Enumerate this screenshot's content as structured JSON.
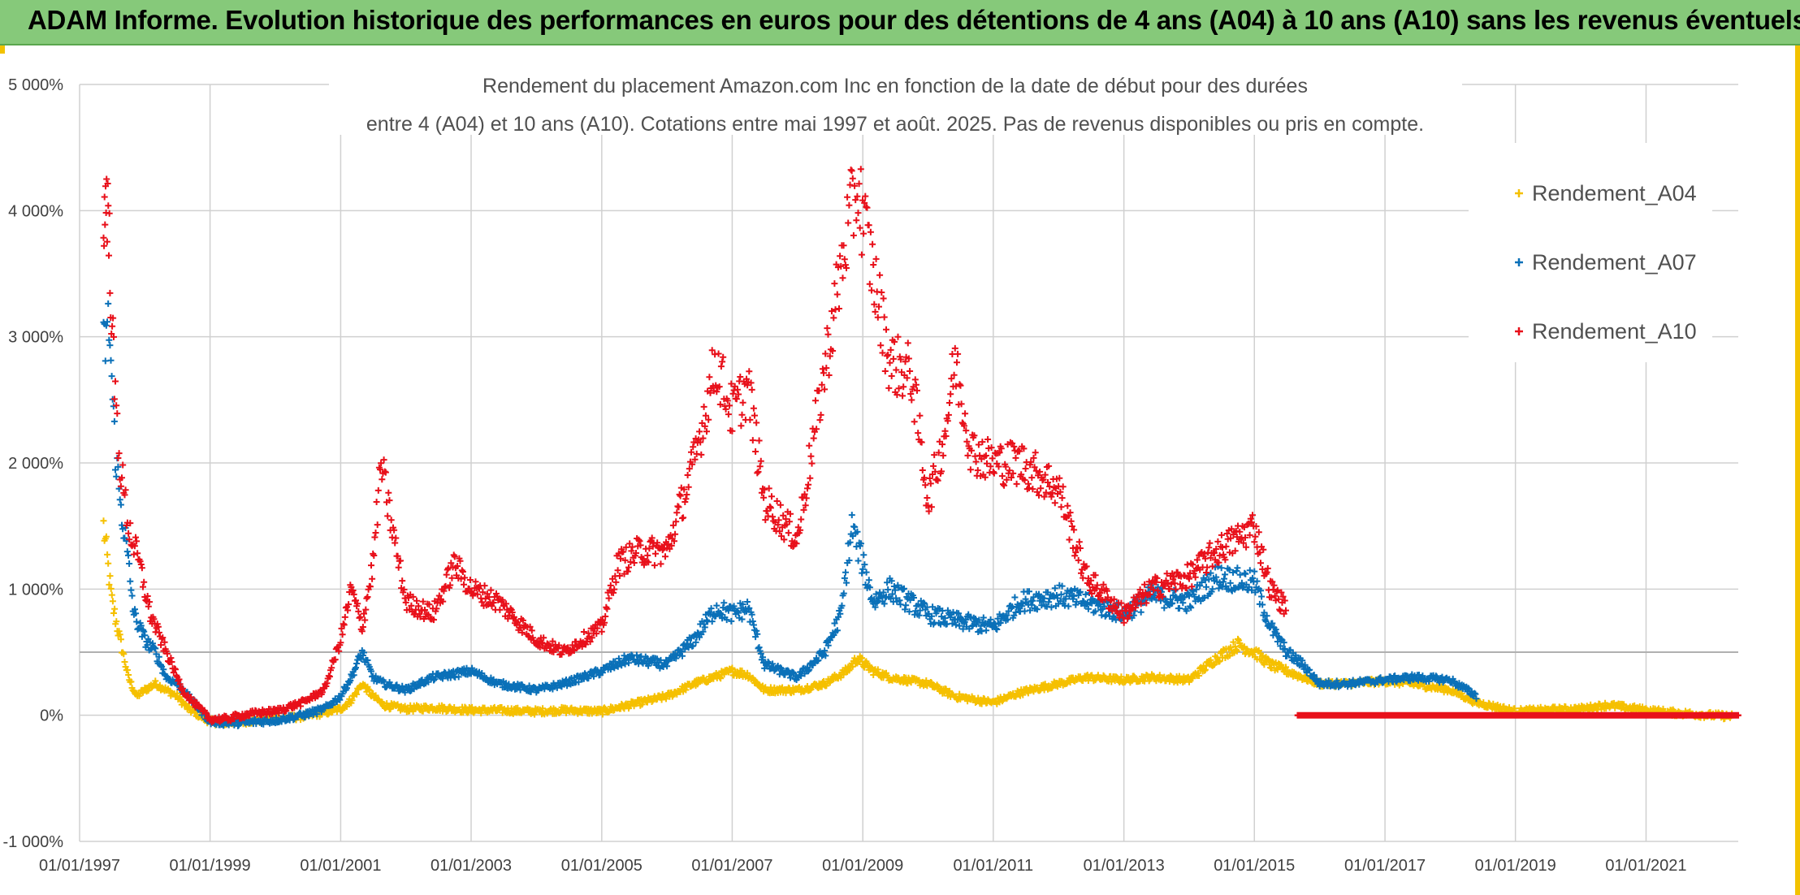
{
  "banner": {
    "title": "ADAM Informe. Evolution historique des performances en euros pour des détentions de 4 ans (A04) à 10 ans (A10) sans les revenus éventuels"
  },
  "chart_data": {
    "type": "scatter",
    "title_line1": "Rendement du placement Amazon.com Inc en fonction de la date de début pour des durées",
    "title_line2": "entre 4 (A04) et 10 ans (A10). Cotations entre mai 1997 et août. 2025. Pas de revenus disponibles ou pris en compte.",
    "xlabel": "",
    "ylabel": "",
    "ylim": [
      -1000,
      5000
    ],
    "y_ticks": [
      -1000,
      0,
      1000,
      2000,
      3000,
      4000,
      5000
    ],
    "y_tick_labels": [
      "-1 000%",
      "0%",
      "1 000%",
      "2 000%",
      "3 000%",
      "4 000%",
      "5 000%"
    ],
    "xlim": [
      "1997-01-01",
      "2022-06-01"
    ],
    "x_ticks": [
      "1997-01-01",
      "1999-01-01",
      "2001-01-01",
      "2003-01-01",
      "2005-01-01",
      "2007-01-01",
      "2009-01-01",
      "2011-01-01",
      "2013-01-01",
      "2015-01-01",
      "2017-01-01",
      "2019-01-01",
      "2021-01-01"
    ],
    "x_tick_labels": [
      "01/01/1997",
      "01/01/1999",
      "01/01/2001",
      "01/01/2003",
      "01/01/2005",
      "01/01/2007",
      "01/01/2009",
      "01/01/2011",
      "01/01/2013",
      "01/01/2015",
      "01/01/2017",
      "01/01/2019",
      "01/01/2021"
    ],
    "reference_line": 500,
    "grid": true,
    "legend_position": "top-right",
    "series": [
      {
        "name": "Rendement_A04",
        "color": "#f5c000",
        "points": [
          [
            "1997-05-15",
            1500
          ],
          [
            "1997-07-01",
            900
          ],
          [
            "1997-08-15",
            600
          ],
          [
            "1997-10-01",
            300
          ],
          [
            "1997-11-15",
            150
          ],
          [
            "1998-01-01",
            200
          ],
          [
            "1998-03-01",
            250
          ],
          [
            "1998-05-01",
            200
          ],
          [
            "1998-07-01",
            150
          ],
          [
            "1998-09-01",
            50
          ],
          [
            "1998-11-01",
            0
          ],
          [
            "1999-01-01",
            -50
          ],
          [
            "1999-04-01",
            -60
          ],
          [
            "1999-07-01",
            -50
          ],
          [
            "1999-10-01",
            -40
          ],
          [
            "2000-01-01",
            -30
          ],
          [
            "2000-06-01",
            -10
          ],
          [
            "2000-10-01",
            20
          ],
          [
            "2001-01-01",
            50
          ],
          [
            "2001-03-01",
            120
          ],
          [
            "2001-05-01",
            250
          ],
          [
            "2001-07-01",
            150
          ],
          [
            "2001-09-01",
            80
          ],
          [
            "2002-01-01",
            50
          ],
          [
            "2002-06-01",
            60
          ],
          [
            "2003-01-01",
            40
          ],
          [
            "2003-06-01",
            40
          ],
          [
            "2004-01-01",
            30
          ],
          [
            "2004-06-01",
            40
          ],
          [
            "2005-01-01",
            30
          ],
          [
            "2005-06-01",
            80
          ],
          [
            "2006-01-01",
            150
          ],
          [
            "2006-06-01",
            250
          ],
          [
            "2007-01-01",
            350
          ],
          [
            "2007-04-01",
            320
          ],
          [
            "2007-07-01",
            200
          ],
          [
            "2008-01-01",
            200
          ],
          [
            "2008-06-01",
            250
          ],
          [
            "2008-10-01",
            350
          ],
          [
            "2008-12-01",
            450
          ],
          [
            "2009-03-01",
            350
          ],
          [
            "2009-06-01",
            300
          ],
          [
            "2010-01-01",
            250
          ],
          [
            "2010-06-01",
            150
          ],
          [
            "2011-01-01",
            100
          ],
          [
            "2011-06-01",
            180
          ],
          [
            "2012-01-01",
            250
          ],
          [
            "2012-06-01",
            300
          ],
          [
            "2013-01-01",
            280
          ],
          [
            "2013-06-01",
            300
          ],
          [
            "2014-01-01",
            280
          ],
          [
            "2014-06-01",
            450
          ],
          [
            "2014-10-01",
            560
          ],
          [
            "2015-01-01",
            500
          ],
          [
            "2015-04-01",
            400
          ],
          [
            "2015-07-01",
            350
          ],
          [
            "2015-10-01",
            300
          ],
          [
            "2016-01-01",
            250
          ],
          [
            "2016-06-01",
            250
          ],
          [
            "2017-01-01",
            270
          ],
          [
            "2017-06-01",
            250
          ],
          [
            "2018-01-01",
            200
          ],
          [
            "2018-06-01",
            100
          ],
          [
            "2019-01-01",
            30
          ],
          [
            "2019-06-01",
            40
          ],
          [
            "2020-01-01",
            50
          ],
          [
            "2020-06-01",
            80
          ],
          [
            "2021-01-01",
            40
          ],
          [
            "2021-06-01",
            20
          ],
          [
            "2022-01-01",
            0
          ],
          [
            "2022-05-01",
            -10
          ]
        ]
      },
      {
        "name": "Rendement_A07",
        "color": "#0a70b8",
        "points": [
          [
            "1997-05-15",
            2900
          ],
          [
            "1997-06-15",
            3100
          ],
          [
            "1997-07-15",
            2200
          ],
          [
            "1997-08-15",
            1700
          ],
          [
            "1997-09-15",
            1400
          ],
          [
            "1997-11-01",
            800
          ],
          [
            "1998-01-01",
            600
          ],
          [
            "1998-03-01",
            500
          ],
          [
            "1998-05-01",
            300
          ],
          [
            "1998-07-01",
            250
          ],
          [
            "1998-09-01",
            150
          ],
          [
            "1998-11-01",
            50
          ],
          [
            "1999-01-01",
            -50
          ],
          [
            "1999-04-01",
            -60
          ],
          [
            "1999-07-01",
            -60
          ],
          [
            "1999-10-01",
            -50
          ],
          [
            "2000-01-01",
            -40
          ],
          [
            "2000-06-01",
            0
          ],
          [
            "2000-10-01",
            50
          ],
          [
            "2001-01-01",
            150
          ],
          [
            "2001-03-01",
            300
          ],
          [
            "2001-05-01",
            500
          ],
          [
            "2001-07-01",
            300
          ],
          [
            "2001-09-01",
            250
          ],
          [
            "2002-01-01",
            200
          ],
          [
            "2002-06-01",
            300
          ],
          [
            "2003-01-01",
            350
          ],
          [
            "2003-06-01",
            250
          ],
          [
            "2004-01-01",
            200
          ],
          [
            "2004-06-01",
            250
          ],
          [
            "2005-01-01",
            350
          ],
          [
            "2005-06-01",
            450
          ],
          [
            "2006-01-01",
            400
          ],
          [
            "2006-06-01",
            600
          ],
          [
            "2006-10-01",
            850
          ],
          [
            "2007-01-01",
            800
          ],
          [
            "2007-04-01",
            850
          ],
          [
            "2007-07-01",
            400
          ],
          [
            "2008-01-01",
            300
          ],
          [
            "2008-06-01",
            500
          ],
          [
            "2008-09-01",
            800
          ],
          [
            "2008-11-01",
            1500
          ],
          [
            "2009-01-01",
            1200
          ],
          [
            "2009-03-01",
            900
          ],
          [
            "2009-06-01",
            1000
          ],
          [
            "2010-01-01",
            800
          ],
          [
            "2010-06-01",
            750
          ],
          [
            "2011-01-01",
            700
          ],
          [
            "2011-06-01",
            900
          ],
          [
            "2012-01-01",
            950
          ],
          [
            "2012-06-01",
            900
          ],
          [
            "2013-01-01",
            800
          ],
          [
            "2013-06-01",
            950
          ],
          [
            "2014-01-01",
            900
          ],
          [
            "2014-06-01",
            1100
          ],
          [
            "2015-01-01",
            1050
          ],
          [
            "2015-04-01",
            700
          ],
          [
            "2015-07-01",
            500
          ],
          [
            "2015-10-01",
            400
          ],
          [
            "2016-01-01",
            250
          ],
          [
            "2016-06-01",
            250
          ],
          [
            "2017-01-01",
            280
          ],
          [
            "2017-06-01",
            300
          ],
          [
            "2018-01-01",
            280
          ],
          [
            "2018-06-01",
            150
          ]
        ]
      },
      {
        "name": "Rendement_A10",
        "color": "#e8101a",
        "points": [
          [
            "1997-05-15",
            3800
          ],
          [
            "1997-06-01",
            4200
          ],
          [
            "1997-06-20",
            3600
          ],
          [
            "1997-07-15",
            2600
          ],
          [
            "1997-08-15",
            2000
          ],
          [
            "1997-10-01",
            1500
          ],
          [
            "1997-12-01",
            1200
          ],
          [
            "1998-02-01",
            800
          ],
          [
            "1998-04-01",
            600
          ],
          [
            "1998-06-01",
            400
          ],
          [
            "1998-08-01",
            200
          ],
          [
            "1998-10-01",
            100
          ],
          [
            "1999-01-01",
            -30
          ],
          [
            "1999-04-01",
            -30
          ],
          [
            "1999-07-01",
            0
          ],
          [
            "1999-10-01",
            20
          ],
          [
            "2000-01-01",
            30
          ],
          [
            "2000-06-01",
            100
          ],
          [
            "2000-10-01",
            200
          ],
          [
            "2001-01-01",
            600
          ],
          [
            "2001-03-01",
            1000
          ],
          [
            "2001-05-01",
            700
          ],
          [
            "2001-07-01",
            1200
          ],
          [
            "2001-08-15",
            2000
          ],
          [
            "2001-10-01",
            1600
          ],
          [
            "2002-01-01",
            900
          ],
          [
            "2002-06-01",
            800
          ],
          [
            "2002-10-01",
            1200
          ],
          [
            "2003-01-01",
            1000
          ],
          [
            "2003-06-01",
            900
          ],
          [
            "2004-01-01",
            600
          ],
          [
            "2004-06-01",
            500
          ],
          [
            "2005-01-01",
            700
          ],
          [
            "2005-04-01",
            1200
          ],
          [
            "2005-08-01",
            1300
          ],
          [
            "2006-01-01",
            1300
          ],
          [
            "2006-06-01",
            2000
          ],
          [
            "2006-10-01",
            2800
          ],
          [
            "2007-01-01",
            2400
          ],
          [
            "2007-04-01",
            2600
          ],
          [
            "2007-07-01",
            1700
          ],
          [
            "2008-01-01",
            1400
          ],
          [
            "2008-04-01",
            2200
          ],
          [
            "2008-07-01",
            3000
          ],
          [
            "2008-10-01",
            3800
          ],
          [
            "2008-12-01",
            4200
          ],
          [
            "2009-03-01",
            3500
          ],
          [
            "2009-06-01",
            2800
          ],
          [
            "2009-10-01",
            2700
          ],
          [
            "2010-01-01",
            1700
          ],
          [
            "2010-04-01",
            2200
          ],
          [
            "2010-06-01",
            2800
          ],
          [
            "2010-09-01",
            2100
          ],
          [
            "2011-01-01",
            2000
          ],
          [
            "2011-06-01",
            2000
          ],
          [
            "2012-01-01",
            1800
          ],
          [
            "2012-06-01",
            1100
          ],
          [
            "2013-01-01",
            800
          ],
          [
            "2013-06-01",
            1000
          ],
          [
            "2014-01-01",
            1100
          ],
          [
            "2014-06-01",
            1300
          ],
          [
            "2014-10-01",
            1400
          ],
          [
            "2015-01-01",
            1500
          ],
          [
            "2015-04-01",
            1000
          ],
          [
            "2015-07-01",
            850
          ]
        ],
        "zero_segment": [
          "2015-09-01",
          "2022-06-01"
        ]
      }
    ]
  }
}
